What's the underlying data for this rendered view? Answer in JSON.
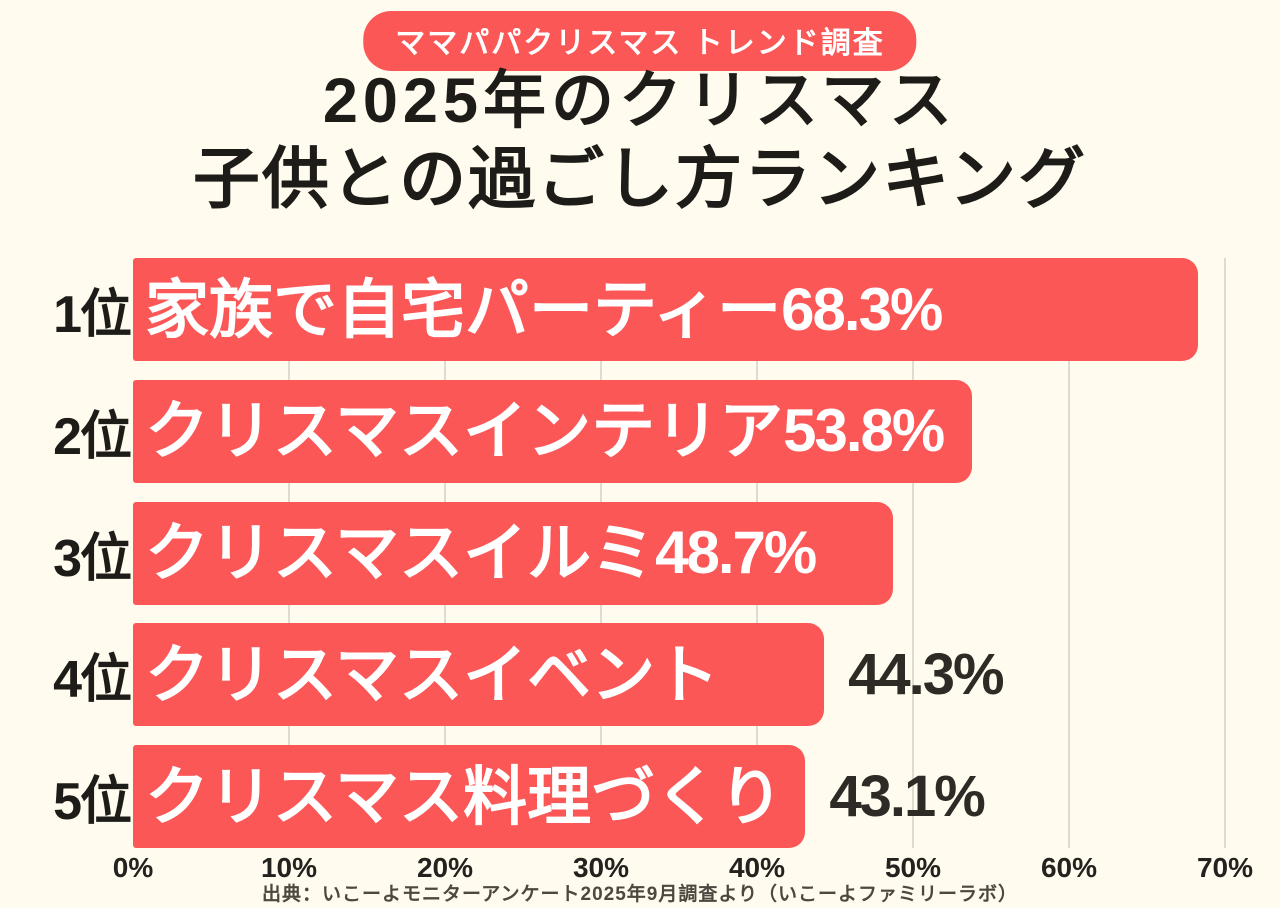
{
  "badge": {
    "label": "ママパパクリスマス トレンド調査"
  },
  "title": {
    "line1": "2025年のクリスマス",
    "line2": "子供との過ごし方ランキング"
  },
  "footer": {
    "source": "出典：いこーよモニターアンケート2025年9月調査より（いこーよファミリーラボ）"
  },
  "colors": {
    "background": "#FFFBEE",
    "accent_red": "#FB5757",
    "gridline": "#DEDBD1",
    "title_text": "#1E1C18",
    "bar_text": "#FFFFFF",
    "outside_value_text": "#2E2B26",
    "axis_text": "#24221E",
    "footer_text": "#4C4840"
  },
  "chart_data": {
    "type": "bar",
    "orientation": "horizontal",
    "title": "2025年のクリスマス 子供との過ごし方ランキング",
    "subtitle": "ママパパクリスマス トレンド調査",
    "categories": [
      "家族で自宅パーティー",
      "クリスマスインテリア",
      "クリスマスイルミ",
      "クリスマスイベント",
      "クリスマス料理づくり"
    ],
    "ranks": [
      "1位",
      "2位",
      "3位",
      "4位",
      "5位"
    ],
    "values": [
      68.3,
      53.8,
      48.7,
      44.3,
      43.1
    ],
    "value_labels": [
      "68.3%",
      "53.8%",
      "48.7%",
      "44.3%",
      "43.1%"
    ],
    "value_label_position": [
      "inside",
      "inside",
      "inside",
      "outside",
      "outside"
    ],
    "xlabel": "",
    "ylabel": "",
    "xlim": [
      0,
      70
    ],
    "x_ticks": [
      "0%",
      "10%",
      "20%",
      "30%",
      "40%",
      "50%",
      "60%",
      "70%"
    ],
    "x_tick_values": [
      0,
      10,
      20,
      30,
      40,
      50,
      60,
      70
    ],
    "grid": true,
    "legend": false
  }
}
